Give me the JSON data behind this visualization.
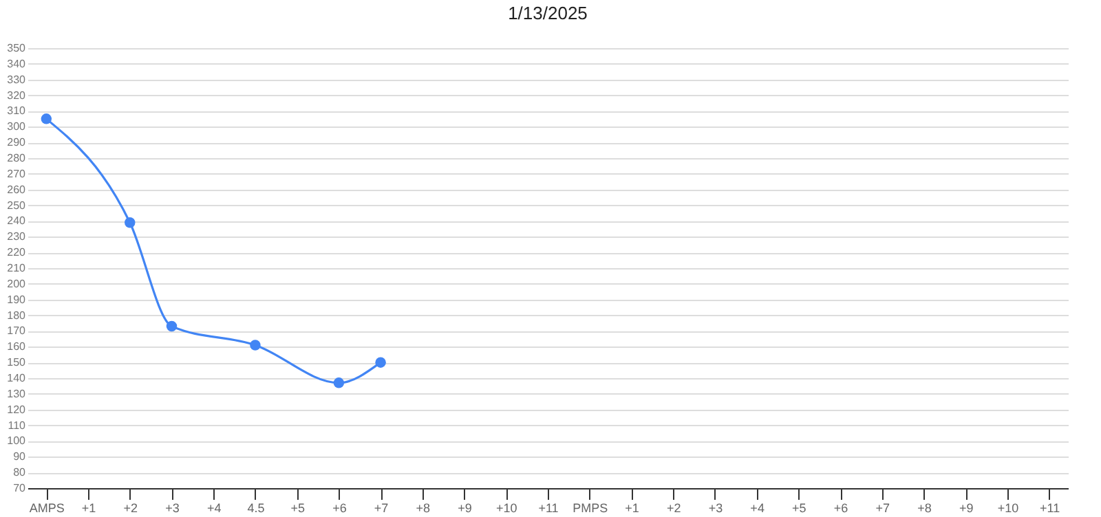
{
  "chart_data": {
    "type": "line",
    "title": "1/13/2025",
    "categories": [
      "AMPS",
      "+1",
      "+2",
      "+3",
      "+4",
      "4.5",
      "+5",
      "+6",
      "+7",
      "+8",
      "+9",
      "+10",
      "+11",
      "PMPS",
      "+1",
      "+2",
      "+3",
      "+4",
      "+5",
      "+6",
      "+7",
      "+8",
      "+9",
      "+10",
      "+11"
    ],
    "series": [
      {
        "color": "#4285f4",
        "values": [
          305,
          null,
          239,
          173,
          null,
          161,
          null,
          137,
          150,
          null,
          null,
          null,
          null,
          null,
          null,
          null,
          null,
          null,
          null,
          null,
          null,
          null,
          null,
          null,
          null
        ]
      }
    ],
    "ylim": [
      70,
      350
    ],
    "yticks": [
      70,
      80,
      90,
      100,
      110,
      120,
      130,
      140,
      150,
      160,
      170,
      180,
      190,
      200,
      210,
      220,
      230,
      240,
      250,
      260,
      270,
      280,
      290,
      300,
      310,
      320,
      330,
      340,
      350
    ],
    "grid": "y",
    "marker": "circle"
  }
}
